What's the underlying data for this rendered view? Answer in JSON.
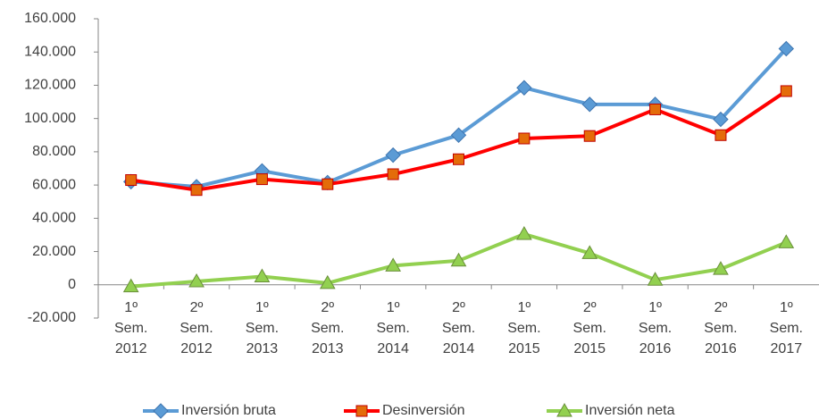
{
  "chart_data": {
    "type": "line",
    "categories": [
      "1º Sem. 2012",
      "2º Sem. 2012",
      "1º Sem. 2013",
      "2º Sem. 2013",
      "1º Sem. 2014",
      "2º Sem. 2014",
      "1º Sem. 2015",
      "2º Sem. 2015",
      "1º Sem. 2016",
      "2º Sem. 2016",
      "1º Sem. 2017"
    ],
    "series": [
      {
        "name": "Inversión bruta",
        "color": "#5b9bd5",
        "marker": "diamond",
        "values": [
          62000,
          59000,
          68500,
          61500,
          78000,
          90000,
          118500,
          108500,
          108500,
          99500,
          142000
        ]
      },
      {
        "name": "Desinversión",
        "color": "#ff0000",
        "marker": "square",
        "values": [
          63000,
          57000,
          63500,
          60500,
          66500,
          75500,
          88000,
          89500,
          105500,
          90000,
          116500
        ]
      },
      {
        "name": "Inversión neta",
        "color": "#92d050",
        "marker": "triangle",
        "values": [
          -1000,
          2000,
          5000,
          1000,
          11500,
          14500,
          30500,
          19000,
          3000,
          9500,
          25500
        ]
      }
    ],
    "ylim": [
      -20000,
      160000
    ],
    "yticks": [
      {
        "value": -20000,
        "label": "-20.000"
      },
      0,
      {
        "value": 20000,
        "label": "20.000"
      },
      {
        "value": 40000,
        "label": "40.000"
      },
      {
        "value": 60000,
        "label": "60.000"
      },
      {
        "value": 80000,
        "label": "80.000"
      },
      {
        "value": 100000,
        "label": "100.000"
      },
      {
        "value": 120000,
        "label": "120.000"
      },
      {
        "value": 140000,
        "label": "140.000"
      },
      {
        "value": 160000,
        "label": "160.000"
      }
    ],
    "grid": false,
    "legend": "bottom"
  }
}
